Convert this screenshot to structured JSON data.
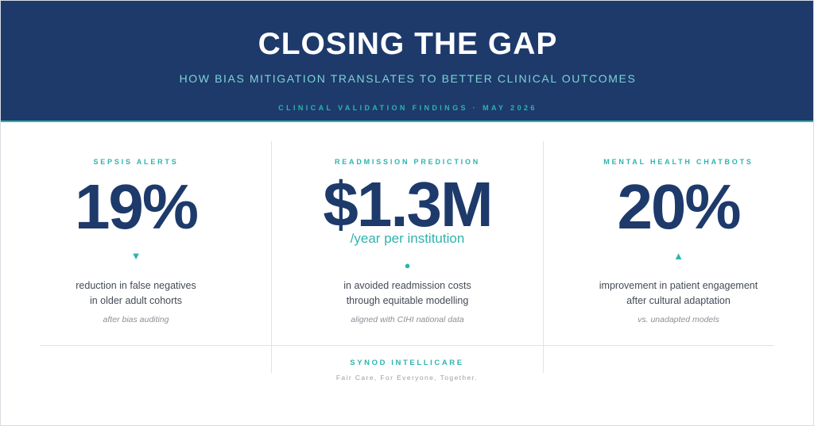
{
  "header": {
    "title": "CLOSING THE GAP",
    "subtitle": "HOW BIAS MITIGATION TRANSLATES TO BETTER CLINICAL OUTCOMES",
    "findings_line": "CLINICAL VALIDATION FINDINGS · MAY 2026"
  },
  "stats": [
    {
      "label": "SEPSIS ALERTS",
      "value": "19%",
      "unit": "",
      "icon": "triangle-down-icon",
      "icon_glyph": "▼",
      "desc_line1": "reduction in false negatives",
      "desc_line2": "in older adult cohorts",
      "note": "after bias auditing"
    },
    {
      "label": "READMISSION PREDICTION",
      "value": "$1.3M",
      "unit": "/year per institution",
      "icon": "dot-icon",
      "icon_glyph": "●",
      "desc_line1": "in avoided readmission costs",
      "desc_line2": "through equitable modelling",
      "note": "aligned with CIHI national data"
    },
    {
      "label": "MENTAL HEALTH CHATBOTS",
      "value": "20%",
      "unit": "",
      "icon": "triangle-up-icon",
      "icon_glyph": "▲",
      "desc_line1": "improvement in patient engagement",
      "desc_line2": "after cultural adaptation",
      "note": "vs. unadapted models"
    }
  ],
  "footer": {
    "brand": "SYNOD INTELLICARE",
    "tagline": "Fair Care, For Everyone, Together."
  },
  "colors": {
    "navy": "#1d3a6b",
    "teal": "#2fb3ae",
    "subtitle": "#7fd3d4"
  }
}
